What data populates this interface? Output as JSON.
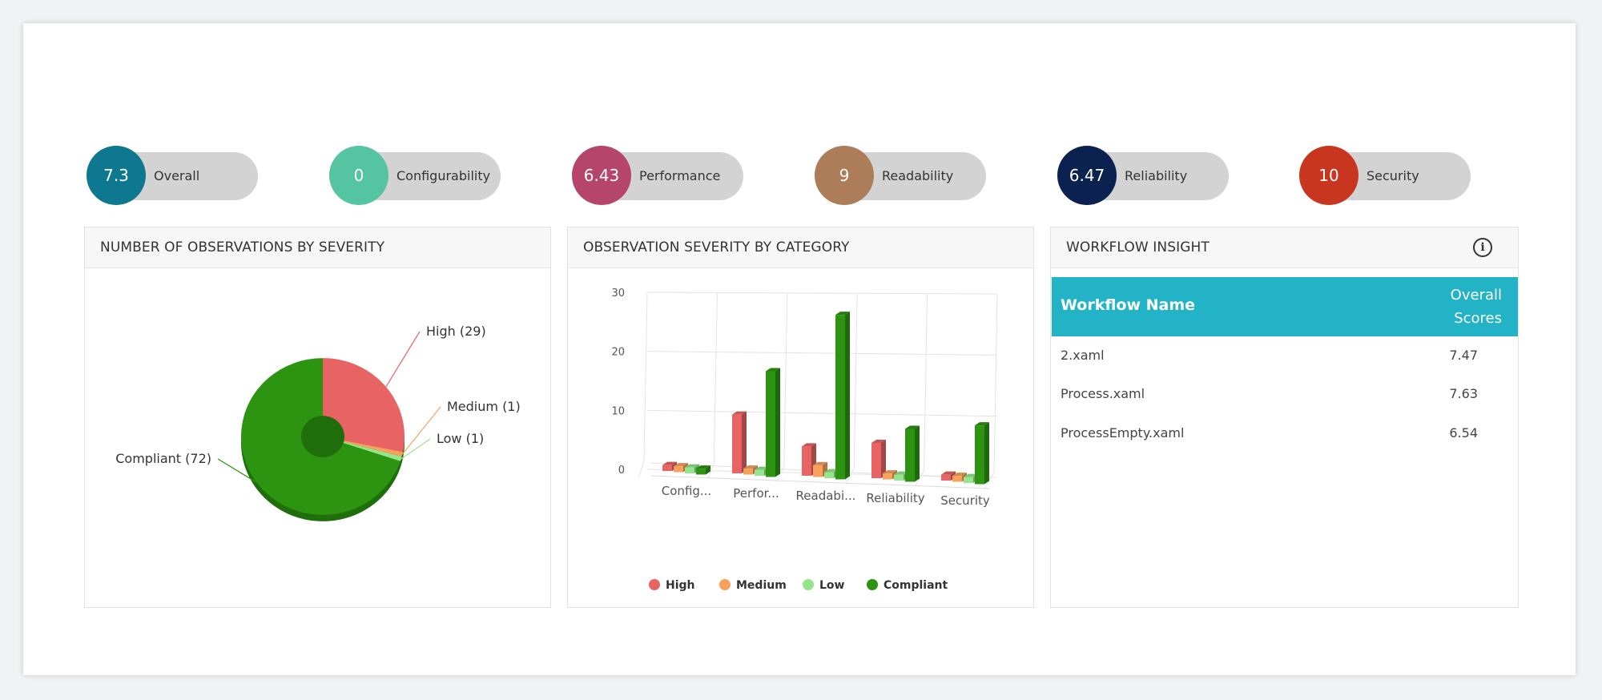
{
  "metrics": [
    {
      "value": "7.3",
      "label": "Overall",
      "color": "#0f7891"
    },
    {
      "value": "0",
      "label": "Configurability",
      "color": "#55c4a1"
    },
    {
      "value": "6.43",
      "label": "Performance",
      "color": "#b5456a"
    },
    {
      "value": "9",
      "label": "Readability",
      "color": "#ad7c58"
    },
    {
      "value": "6.47",
      "label": "Reliability",
      "color": "#0b2150"
    },
    {
      "value": "10",
      "label": "Security",
      "color": "#c9361f"
    }
  ],
  "panels": {
    "severity_title": "NUMBER OF OBSERVATIONS BY SEVERITY",
    "category_title": "OBSERVATION SEVERITY BY CATEGORY",
    "workflow_title": "WORKFLOW INSIGHT"
  },
  "chart_data": [
    {
      "type": "pie",
      "title": "NUMBER OF OBSERVATIONS BY SEVERITY",
      "categories": [
        "High",
        "Medium",
        "Low",
        "Compliant"
      ],
      "values": [
        29,
        1,
        1,
        72
      ],
      "labels": [
        "High (29)",
        "Medium (1)",
        "Low (1)",
        "Compliant (72)"
      ],
      "colors": [
        "#e86464",
        "#f8a15d",
        "#94e58c",
        "#2c9410"
      ]
    },
    {
      "type": "bar",
      "title": "OBSERVATION SEVERITY BY CATEGORY",
      "categories": [
        "Config...",
        "Perfor...",
        "Readabi...",
        "Reliability",
        "Security"
      ],
      "series": [
        {
          "name": "High",
          "values": [
            1,
            10,
            5,
            6,
            1
          ],
          "color": "#e86464"
        },
        {
          "name": "Medium",
          "values": [
            1,
            1,
            2,
            1,
            1
          ],
          "color": "#f8a15d"
        },
        {
          "name": "Low",
          "values": [
            1,
            1,
            1,
            1,
            1
          ],
          "color": "#94e58c"
        },
        {
          "name": "Compliant",
          "values": [
            1,
            18,
            28,
            9,
            10
          ],
          "color": "#2c9410"
        }
      ],
      "yticks": [
        "0",
        "10",
        "20",
        "30"
      ],
      "ylim": [
        0,
        30
      ],
      "legend": "bottom"
    }
  ],
  "workflow": {
    "col_name": "Workflow Name",
    "col_score_line1": "Overall",
    "col_score_line2": "Scores",
    "rows": [
      {
        "name": "2.xaml",
        "score": "7.47"
      },
      {
        "name": "Process.xaml",
        "score": "7.63"
      },
      {
        "name": "ProcessEmpty.xaml",
        "score": "6.54"
      }
    ]
  }
}
